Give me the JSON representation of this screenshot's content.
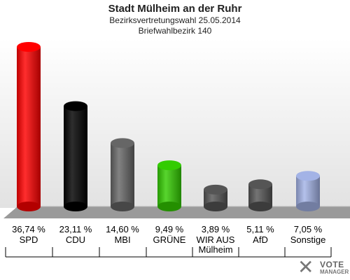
{
  "chart_data": {
    "type": "bar",
    "title": "Stadt Mülheim an der Ruhr",
    "subtitle_lines": [
      "Bezirksvertretungswahl 25.05.2014",
      "Briefwahlbezirk 140"
    ],
    "ylim": [
      0,
      40
    ],
    "categories": [
      "SPD",
      "CDU",
      "MBI",
      "GRÜNE",
      "WIR AUS Mülheim",
      "AfD",
      "Sonstige"
    ],
    "category_lines": [
      [
        "SPD"
      ],
      [
        "CDU"
      ],
      [
        "MBI"
      ],
      [
        "GRÜNE"
      ],
      [
        "WIR AUS",
        "Mülheim"
      ],
      [
        "AfD"
      ],
      [
        "Sonstige"
      ]
    ],
    "values": [
      36.74,
      23.11,
      14.6,
      9.49,
      3.89,
      5.11,
      7.05
    ],
    "value_labels": [
      "36,74 %",
      "23,11 %",
      "14,60 %",
      "9,49 %",
      "3,89 %",
      "5,11 %",
      "7,05 %"
    ],
    "colors": [
      "#ff0000",
      "#000000",
      "#666666",
      "#33cc00",
      "#555555",
      "#555555",
      "#a3b3e6"
    ]
  },
  "logo": {
    "mark": "✕",
    "line1": "VOTE",
    "line2": "MANAGER"
  }
}
